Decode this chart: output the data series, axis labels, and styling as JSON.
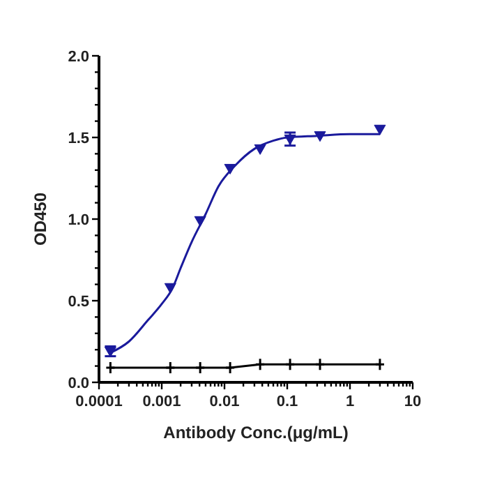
{
  "chart_data": {
    "type": "scatter",
    "xlabel": "Antibody Conc.(μg/mL)",
    "ylabel": "OD450",
    "log": "x",
    "xlim": [
      0.0001,
      10
    ],
    "xticks": [
      {
        "value": 0.0001,
        "label": "0.0001"
      },
      {
        "value": 0.0002,
        "label": null
      },
      {
        "value": 0.0003,
        "label": null
      },
      {
        "value": 0.0004,
        "label": null
      },
      {
        "value": 0.0005,
        "label": null
      },
      {
        "value": 0.0006,
        "label": null
      },
      {
        "value": 0.0007,
        "label": null
      },
      {
        "value": 0.0008,
        "label": null
      },
      {
        "value": 0.0009,
        "label": null
      },
      {
        "value": 0.001,
        "label": "0.001"
      },
      {
        "value": 0.002,
        "label": null
      },
      {
        "value": 0.003,
        "label": null
      },
      {
        "value": 0.004,
        "label": null
      },
      {
        "value": 0.005,
        "label": null
      },
      {
        "value": 0.006,
        "label": null
      },
      {
        "value": 0.007,
        "label": null
      },
      {
        "value": 0.008,
        "label": null
      },
      {
        "value": 0.009,
        "label": null
      },
      {
        "value": 0.01,
        "label": "0.01"
      },
      {
        "value": 0.02,
        "label": null
      },
      {
        "value": 0.03,
        "label": null
      },
      {
        "value": 0.04,
        "label": null
      },
      {
        "value": 0.05,
        "label": null
      },
      {
        "value": 0.06,
        "label": null
      },
      {
        "value": 0.07,
        "label": null
      },
      {
        "value": 0.08,
        "label": null
      },
      {
        "value": 0.09,
        "label": null
      },
      {
        "value": 0.1,
        "label": "0.1"
      },
      {
        "value": 0.2,
        "label": null
      },
      {
        "value": 0.3,
        "label": null
      },
      {
        "value": 0.4,
        "label": null
      },
      {
        "value": 0.5,
        "label": null
      },
      {
        "value": 0.6,
        "label": null
      },
      {
        "value": 0.7,
        "label": null
      },
      {
        "value": 0.8,
        "label": null
      },
      {
        "value": 0.9,
        "label": null
      },
      1,
      {
        "value": 2,
        "label": null
      },
      {
        "value": 3,
        "label": null
      },
      {
        "value": 4,
        "label": null
      },
      {
        "value": 5,
        "label": null
      },
      {
        "value": 6,
        "label": null
      },
      {
        "value": 7,
        "label": null
      },
      {
        "value": 8,
        "label": null
      },
      {
        "value": 9,
        "label": null
      },
      10
    ],
    "ylim": [
      0,
      2
    ],
    "yticks": [
      {
        "value": 0,
        "label": "0.0"
      },
      {
        "value": 0.1,
        "label": null
      },
      {
        "value": 0.2,
        "label": null
      },
      {
        "value": 0.3,
        "label": null
      },
      {
        "value": 0.4,
        "label": null
      },
      {
        "value": 0.5,
        "label": "0.5"
      },
      {
        "value": 0.6,
        "label": null
      },
      {
        "value": 0.7,
        "label": null
      },
      {
        "value": 0.8,
        "label": null
      },
      {
        "value": 0.9,
        "label": null
      },
      {
        "value": 1,
        "label": "1.0"
      },
      {
        "value": 1.1,
        "label": null
      },
      {
        "value": 1.2,
        "label": null
      },
      {
        "value": 1.3,
        "label": null
      },
      {
        "value": 1.4,
        "label": null
      },
      {
        "value": 1.5,
        "label": "1.5"
      },
      {
        "value": 1.6,
        "label": null
      },
      {
        "value": 1.7,
        "label": null
      },
      {
        "value": 1.8,
        "label": null
      },
      {
        "value": 1.9,
        "label": null
      },
      {
        "value": 2,
        "label": "2.0"
      }
    ],
    "x": [
      0.000152,
      0.00137,
      0.0041,
      0.0123,
      0.037,
      0.111,
      0.333,
      3
    ],
    "series": [
      {
        "type": "line",
        "color": "#000000",
        "marker": "cross",
        "line_style": "solid",
        "values": [
          0.09,
          0.09,
          0.09,
          0.09,
          0.11,
          0.11,
          0.11,
          0.11
        ]
      },
      {
        "type": "line",
        "color": "#1a1a9c",
        "marker": "none",
        "line_style": "solid",
        "x": [
          0.00015,
          0.0003,
          0.0006,
          0.001,
          0.0015,
          0.002,
          0.003,
          0.005,
          0.008,
          0.015,
          0.03,
          0.06,
          0.1,
          0.3,
          1,
          3
        ],
        "values": [
          0.18,
          0.25,
          0.38,
          0.48,
          0.58,
          0.7,
          0.86,
          1.03,
          1.2,
          1.33,
          1.43,
          1.48,
          1.5,
          1.51,
          1.52,
          1.52
        ]
      },
      {
        "color": "#1a1a9c",
        "marker": "triangle",
        "values": [
          0.19,
          0.58,
          0.99,
          1.31,
          1.43,
          1.49,
          1.51,
          1.55
        ],
        "errors": [
          0.03,
          null,
          null,
          null,
          null,
          0.04,
          null,
          null
        ]
      }
    ]
  }
}
